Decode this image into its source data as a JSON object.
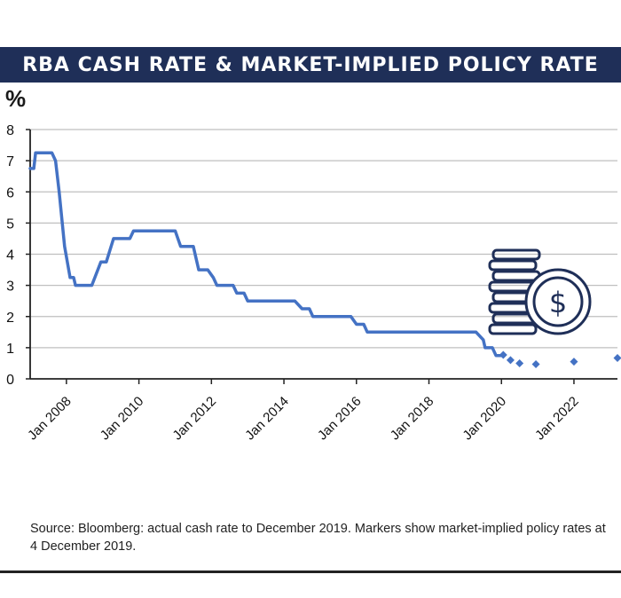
{
  "header": {
    "title": "RBA CASH RATE & MARKET-IMPLIED POLICY RATE"
  },
  "chart_data": {
    "type": "line",
    "ylabel": "%",
    "ylim": [
      0,
      8
    ],
    "yticks": [
      0,
      1,
      2,
      3,
      4,
      5,
      6,
      7,
      8
    ],
    "xlim": [
      2007.0,
      2023.2
    ],
    "xticks": [
      {
        "year": 2008,
        "label": "Jan 2008"
      },
      {
        "year": 2010,
        "label": "Jan 2010"
      },
      {
        "year": 2012,
        "label": "Jan 2012"
      },
      {
        "year": 2014,
        "label": "Jan 2014"
      },
      {
        "year": 2016,
        "label": "Jan 2016"
      },
      {
        "year": 2018,
        "label": "Jan 2018"
      },
      {
        "year": 2020,
        "label": "Jan 2020"
      },
      {
        "year": 2022,
        "label": "Jan 2022"
      }
    ],
    "grid": "horizontal",
    "series": [
      {
        "kind": "line",
        "color": "#4472c4",
        "points": [
          [
            2007.0,
            6.75
          ],
          [
            2007.1,
            6.75
          ],
          [
            2007.15,
            7.25
          ],
          [
            2007.6,
            7.25
          ],
          [
            2007.7,
            7.0
          ],
          [
            2007.8,
            6.0
          ],
          [
            2007.95,
            4.25
          ],
          [
            2008.1,
            3.25
          ],
          [
            2008.2,
            3.25
          ],
          [
            2008.25,
            3.0
          ],
          [
            2008.7,
            3.0
          ],
          [
            2008.95,
            3.75
          ],
          [
            2009.1,
            3.75
          ],
          [
            2009.3,
            4.5
          ],
          [
            2009.75,
            4.5
          ],
          [
            2009.85,
            4.75
          ],
          [
            2011.0,
            4.75
          ],
          [
            2011.15,
            4.25
          ],
          [
            2011.5,
            4.25
          ],
          [
            2011.65,
            3.5
          ],
          [
            2011.9,
            3.5
          ],
          [
            2012.05,
            3.25
          ],
          [
            2012.15,
            3.0
          ],
          [
            2012.6,
            3.0
          ],
          [
            2012.7,
            2.75
          ],
          [
            2012.9,
            2.75
          ],
          [
            2013.0,
            2.5
          ],
          [
            2014.3,
            2.5
          ],
          [
            2014.5,
            2.25
          ],
          [
            2014.7,
            2.25
          ],
          [
            2014.8,
            2.0
          ],
          [
            2015.85,
            2.0
          ],
          [
            2016.0,
            1.75
          ],
          [
            2016.2,
            1.75
          ],
          [
            2016.3,
            1.5
          ],
          [
            2019.3,
            1.5
          ],
          [
            2019.5,
            1.25
          ],
          [
            2019.55,
            1.0
          ],
          [
            2019.75,
            1.0
          ],
          [
            2019.85,
            0.75
          ],
          [
            2020.0,
            0.75
          ]
        ]
      },
      {
        "kind": "markers",
        "color": "#4472c4",
        "points": [
          [
            2020.05,
            0.77
          ],
          [
            2020.25,
            0.6
          ],
          [
            2020.5,
            0.5
          ],
          [
            2020.95,
            0.47
          ],
          [
            2022.0,
            0.55
          ],
          [
            2023.2,
            0.67
          ]
        ]
      }
    ]
  },
  "source": "Source: Bloomberg: actual cash rate to December 2019. Markers show market-implied policy rates at 4 December 2019.",
  "icon": {
    "name": "coins-dollar-icon",
    "color": "#1f2f58"
  }
}
